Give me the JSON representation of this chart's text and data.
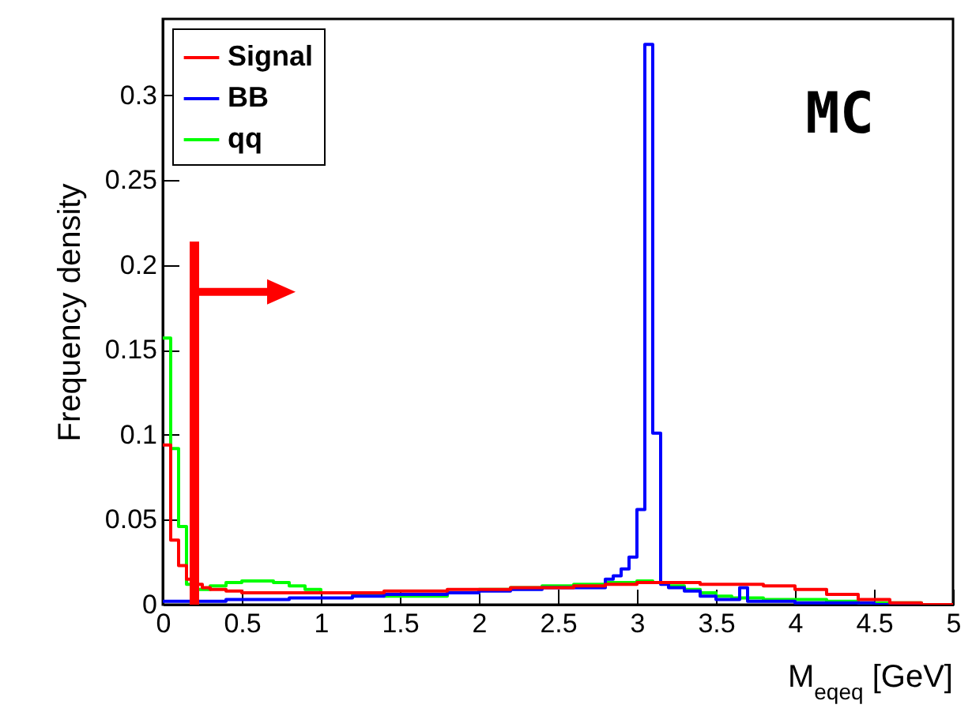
{
  "chart_data": {
    "type": "step",
    "ylabel": "Frequency density",
    "xlabel": "M$_{eqeq}$ [GeV]",
    "annotations": [
      "MC"
    ],
    "series": [
      {
        "name": "Signal",
        "color": "#ff0000",
        "x": [
          0,
          0.05,
          0.1,
          0.15,
          0.2,
          0.25,
          0.3,
          0.4,
          0.5,
          0.6,
          0.8,
          1.0,
          1.2,
          1.4,
          1.6,
          1.8,
          2.0,
          2.2,
          2.4,
          2.6,
          2.8,
          3.0,
          3.2,
          3.4,
          3.6,
          3.8,
          4.0,
          4.2,
          4.4,
          4.6,
          4.8,
          5.0
        ],
        "values": [
          0.094,
          0.038,
          0.023,
          0.015,
          0.012,
          0.01,
          0.009,
          0.008,
          0.007,
          0.007,
          0.007,
          0.007,
          0.007,
          0.008,
          0.008,
          0.009,
          0.009,
          0.01,
          0.01,
          0.011,
          0.012,
          0.013,
          0.013,
          0.012,
          0.012,
          0.011,
          0.009,
          0.006,
          0.003,
          0.001,
          0,
          0
        ]
      },
      {
        "name": "BB",
        "color": "#0000ff",
        "x": [
          0,
          0.2,
          0.4,
          0.6,
          0.8,
          1.0,
          1.2,
          1.4,
          1.6,
          1.8,
          2.0,
          2.2,
          2.4,
          2.6,
          2.8,
          2.85,
          2.9,
          2.95,
          3.0,
          3.05,
          3.1,
          3.15,
          3.2,
          3.3,
          3.4,
          3.5,
          3.65,
          3.7,
          3.8,
          4.0,
          4.5,
          5.0
        ],
        "values": [
          0.002,
          0.002,
          0.003,
          0.003,
          0.004,
          0.004,
          0.005,
          0.006,
          0.006,
          0.007,
          0.008,
          0.009,
          0.01,
          0.01,
          0.015,
          0.017,
          0.021,
          0.028,
          0.056,
          0.33,
          0.101,
          0.012,
          0.01,
          0.008,
          0.005,
          0.003,
          0.01,
          0.002,
          0.002,
          0.001,
          0,
          0
        ]
      },
      {
        "name": "qq",
        "color": "#00ff00",
        "x": [
          0,
          0.05,
          0.1,
          0.15,
          0.2,
          0.3,
          0.4,
          0.5,
          0.6,
          0.7,
          0.8,
          0.9,
          1.0,
          1.2,
          1.4,
          1.6,
          1.8,
          2.0,
          2.2,
          2.4,
          2.6,
          2.8,
          3.0,
          3.1,
          3.2,
          3.3,
          3.4,
          3.5,
          3.6,
          3.8,
          4.0,
          4.2,
          4.4,
          4.6,
          4.8,
          5.0
        ],
        "values": [
          0.157,
          0.092,
          0.046,
          0.012,
          0.009,
          0.011,
          0.013,
          0.014,
          0.014,
          0.013,
          0.011,
          0.009,
          0.007,
          0.006,
          0.005,
          0.005,
          0.007,
          0.009,
          0.01,
          0.011,
          0.012,
          0.013,
          0.014,
          0.013,
          0.011,
          0.009,
          0.007,
          0.005,
          0.004,
          0.003,
          0.003,
          0.002,
          0.001,
          0.001,
          0,
          0
        ]
      }
    ],
    "xlim": [
      0,
      5
    ],
    "xticks": [
      0,
      0.5,
      1,
      1.5,
      2,
      2.5,
      3,
      3.5,
      4,
      4.5,
      5
    ],
    "ylim": [
      0,
      0.345
    ],
    "yticks": [
      0,
      0.05,
      0.1,
      0.15,
      0.2,
      0.25,
      0.3
    ],
    "ref_lines": [
      {
        "axis": "x",
        "value": 0.2,
        "color": "#ff0000"
      }
    ],
    "legend": "top left",
    "grid": false
  }
}
